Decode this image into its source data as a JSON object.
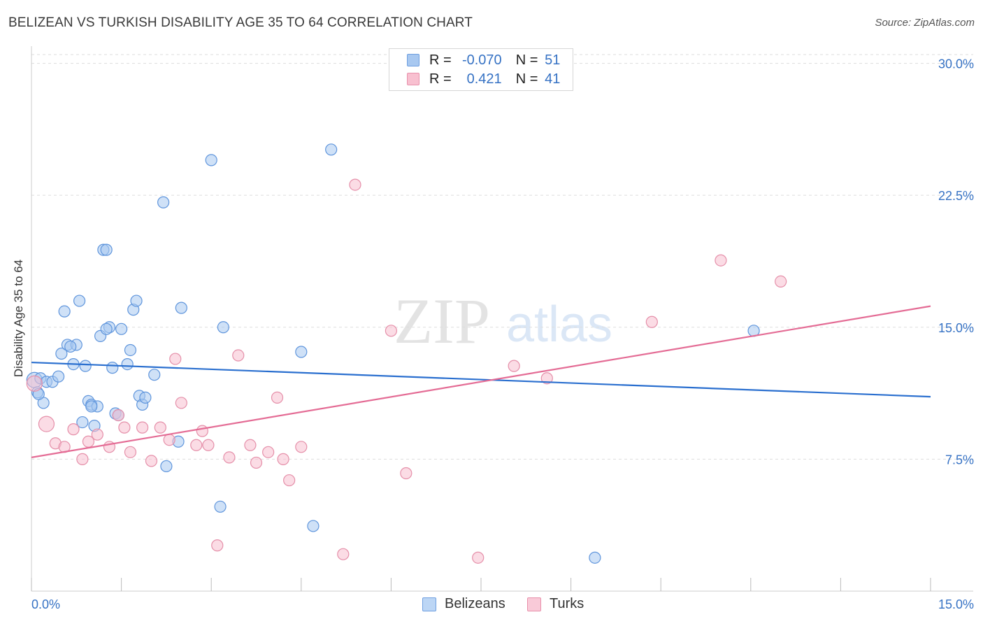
{
  "header": {
    "title": "BELIZEAN VS TURKISH DISABILITY AGE 35 TO 64 CORRELATION CHART",
    "source": "Source: ZipAtlas.com"
  },
  "watermark": {
    "zip": "ZIP",
    "atlas": "atlas"
  },
  "legend": {
    "rows": [
      {
        "r_label": "R =",
        "r_value": "-0.070",
        "n_label": "N =",
        "n_value": "51",
        "color": "#a8c8f0",
        "border": "#6e9fe0"
      },
      {
        "r_label": "R =",
        "r_value": "0.421",
        "n_label": "N =",
        "n_value": "41",
        "color": "#f8c0d0",
        "border": "#e890ab"
      }
    ]
  },
  "bottom_legend": [
    {
      "label": "Belizeans",
      "color": "#bcd6f5",
      "border": "#6e9fe0"
    },
    {
      "label": "Turks",
      "color": "#f9cad8",
      "border": "#e890ab"
    }
  ],
  "colors": {
    "blue_fill": "#a8c8f0",
    "blue_stroke": "#5f95dc",
    "blue_line": "#2a6fcf",
    "pink_fill": "#f8c0d0",
    "pink_stroke": "#e58fa9",
    "pink_line": "#e46c95",
    "axis_text": "#3672c4",
    "grid": "#dddddd"
  },
  "chart_data": {
    "type": "scatter",
    "title": "BELIZEAN VS TURKISH DISABILITY AGE 35 TO 64 CORRELATION CHART",
    "xlabel": "",
    "ylabel": "Disability Age 35 to 64",
    "xlim": [
      0,
      15
    ],
    "ylim": [
      0,
      30.5
    ],
    "x_tick_labels": [
      "0.0%",
      "15.0%"
    ],
    "y_ticks": [
      7.5,
      15.0,
      22.5,
      30.0
    ],
    "y_tick_labels": [
      "7.5%",
      "15.0%",
      "22.5%",
      "30.0%"
    ],
    "grid": "horizontal dashed",
    "series": [
      {
        "name": "Belizeans",
        "r": -0.07,
        "n": 51,
        "trend": {
          "x": [
            0,
            15
          ],
          "y": [
            13.0,
            11.05
          ]
        },
        "points": [
          {
            "x": 0.05,
            "y": 12.0,
            "big": true
          },
          {
            "x": 0.1,
            "y": 11.3
          },
          {
            "x": 0.15,
            "y": 12.1
          },
          {
            "x": 0.2,
            "y": 10.7
          },
          {
            "x": 0.25,
            "y": 11.9
          },
          {
            "x": 0.35,
            "y": 11.9
          },
          {
            "x": 0.45,
            "y": 12.2
          },
          {
            "x": 0.5,
            "y": 13.5
          },
          {
            "x": 0.55,
            "y": 15.9
          },
          {
            "x": 0.6,
            "y": 14.0
          },
          {
            "x": 0.7,
            "y": 12.9
          },
          {
            "x": 0.75,
            "y": 14.0
          },
          {
            "x": 0.8,
            "y": 16.5
          },
          {
            "x": 0.85,
            "y": 9.6
          },
          {
            "x": 0.9,
            "y": 12.8
          },
          {
            "x": 0.95,
            "y": 10.8
          },
          {
            "x": 1.0,
            "y": 10.6
          },
          {
            "x": 1.05,
            "y": 9.4
          },
          {
            "x": 1.1,
            "y": 10.5
          },
          {
            "x": 1.15,
            "y": 14.5
          },
          {
            "x": 1.2,
            "y": 19.4
          },
          {
            "x": 1.25,
            "y": 19.4
          },
          {
            "x": 1.3,
            "y": 15.0
          },
          {
            "x": 1.35,
            "y": 12.7
          },
          {
            "x": 1.4,
            "y": 10.1
          },
          {
            "x": 1.45,
            "y": 10.0
          },
          {
            "x": 1.5,
            "y": 14.9
          },
          {
            "x": 1.6,
            "y": 12.9
          },
          {
            "x": 1.65,
            "y": 13.7
          },
          {
            "x": 1.7,
            "y": 16.0
          },
          {
            "x": 1.75,
            "y": 16.5
          },
          {
            "x": 1.8,
            "y": 11.1
          },
          {
            "x": 1.85,
            "y": 10.6
          },
          {
            "x": 1.9,
            "y": 11.0
          },
          {
            "x": 2.05,
            "y": 12.3
          },
          {
            "x": 2.2,
            "y": 22.1
          },
          {
            "x": 2.25,
            "y": 7.1
          },
          {
            "x": 2.45,
            "y": 8.5
          },
          {
            "x": 2.5,
            "y": 16.1
          },
          {
            "x": 3.0,
            "y": 24.5
          },
          {
            "x": 3.15,
            "y": 4.8
          },
          {
            "x": 3.2,
            "y": 15.0
          },
          {
            "x": 4.5,
            "y": 13.6
          },
          {
            "x": 4.7,
            "y": 3.7
          },
          {
            "x": 5.0,
            "y": 25.1
          },
          {
            "x": 9.4,
            "y": 1.9
          },
          {
            "x": 12.05,
            "y": 14.8
          },
          {
            "x": 0.12,
            "y": 11.2
          },
          {
            "x": 0.65,
            "y": 13.9
          },
          {
            "x": 1.0,
            "y": 10.5
          },
          {
            "x": 1.25,
            "y": 14.9
          }
        ]
      },
      {
        "name": "Turks",
        "r": 0.421,
        "n": 41,
        "trend": {
          "x": [
            0,
            15
          ],
          "y": [
            7.6,
            16.2
          ]
        },
        "points": [
          {
            "x": 0.05,
            "y": 11.8,
            "big": true
          },
          {
            "x": 0.25,
            "y": 9.5,
            "big": true
          },
          {
            "x": 0.4,
            "y": 8.4
          },
          {
            "x": 0.55,
            "y": 8.2
          },
          {
            "x": 0.7,
            "y": 9.2
          },
          {
            "x": 0.85,
            "y": 7.5
          },
          {
            "x": 0.95,
            "y": 8.5
          },
          {
            "x": 1.1,
            "y": 8.9
          },
          {
            "x": 1.3,
            "y": 8.2
          },
          {
            "x": 1.45,
            "y": 10.0
          },
          {
            "x": 1.55,
            "y": 9.3
          },
          {
            "x": 1.65,
            "y": 7.9
          },
          {
            "x": 1.85,
            "y": 9.3
          },
          {
            "x": 2.0,
            "y": 7.4
          },
          {
            "x": 2.15,
            "y": 9.3
          },
          {
            "x": 2.3,
            "y": 8.6
          },
          {
            "x": 2.4,
            "y": 13.2
          },
          {
            "x": 2.5,
            "y": 10.7
          },
          {
            "x": 2.75,
            "y": 8.3
          },
          {
            "x": 2.85,
            "y": 9.1
          },
          {
            "x": 2.95,
            "y": 8.3
          },
          {
            "x": 3.1,
            "y": 2.6
          },
          {
            "x": 3.3,
            "y": 7.6
          },
          {
            "x": 3.45,
            "y": 13.4
          },
          {
            "x": 3.65,
            "y": 8.3
          },
          {
            "x": 3.75,
            "y": 7.3
          },
          {
            "x": 3.95,
            "y": 7.9
          },
          {
            "x": 4.1,
            "y": 11.0
          },
          {
            "x": 4.2,
            "y": 7.5
          },
          {
            "x": 4.3,
            "y": 6.3
          },
          {
            "x": 4.5,
            "y": 8.2
          },
          {
            "x": 5.2,
            "y": 2.1
          },
          {
            "x": 5.4,
            "y": 23.1
          },
          {
            "x": 6.0,
            "y": 14.8
          },
          {
            "x": 6.25,
            "y": 6.7
          },
          {
            "x": 7.45,
            "y": 1.9
          },
          {
            "x": 8.05,
            "y": 12.8
          },
          {
            "x": 8.6,
            "y": 12.1
          },
          {
            "x": 10.35,
            "y": 15.3
          },
          {
            "x": 11.5,
            "y": 18.8
          },
          {
            "x": 12.5,
            "y": 17.6
          }
        ]
      }
    ]
  }
}
